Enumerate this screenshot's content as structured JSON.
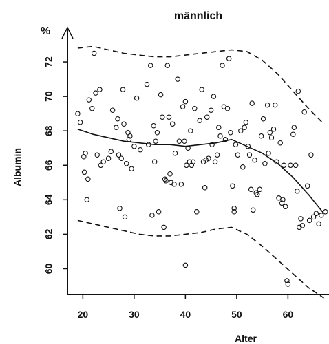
{
  "chart_data": {
    "type": "scatter",
    "title": "männlich",
    "xlabel": "Alter",
    "ylabel": "Albumin",
    "yunit": "%",
    "xlim": [
      17,
      68
    ],
    "ylim": [
      58.5,
      74
    ],
    "xticks": [
      20,
      30,
      40,
      50,
      60
    ],
    "yticks": [
      60,
      62,
      64,
      66,
      68,
      70,
      72
    ],
    "points": [
      [
        19,
        69
      ],
      [
        19.5,
        68.5
      ],
      [
        20.2,
        66.5
      ],
      [
        20.3,
        65.6
      ],
      [
        20.5,
        66.7
      ],
      [
        20.8,
        64
      ],
      [
        21,
        65.2
      ],
      [
        21.2,
        69.8
      ],
      [
        21.8,
        69.3
      ],
      [
        22.2,
        72.5
      ],
      [
        22.5,
        70.2
      ],
      [
        22.8,
        66.6
      ],
      [
        23.3,
        70.4
      ],
      [
        23.5,
        66
      ],
      [
        24,
        66.2
      ],
      [
        25,
        66.4
      ],
      [
        25.5,
        66.8
      ],
      [
        25.8,
        69.2
      ],
      [
        26.5,
        68.2
      ],
      [
        26.8,
        68.7
      ],
      [
        27,
        66.6
      ],
      [
        27.2,
        63.5
      ],
      [
        27.5,
        66.4
      ],
      [
        27.8,
        70.4
      ],
      [
        28,
        68.4
      ],
      [
        28.2,
        63
      ],
      [
        28.5,
        66.1
      ],
      [
        28.8,
        67.9
      ],
      [
        29,
        67.5
      ],
      [
        29.2,
        67.7
      ],
      [
        29.5,
        65.8
      ],
      [
        30,
        67.1
      ],
      [
        30.5,
        69.9
      ],
      [
        31.2,
        66.9
      ],
      [
        32.5,
        70.7
      ],
      [
        32.8,
        67.2
      ],
      [
        33.2,
        71.8
      ],
      [
        33.5,
        63.1
      ],
      [
        33.8,
        68.3
      ],
      [
        34,
        66.2
      ],
      [
        34.2,
        67.4
      ],
      [
        34.5,
        67.9
      ],
      [
        34.8,
        63.3
      ],
      [
        35.2,
        70.1
      ],
      [
        35.5,
        68.8
      ],
      [
        35.8,
        62.4
      ],
      [
        36,
        65.2
      ],
      [
        36.2,
        65.1
      ],
      [
        36.5,
        71.8
      ],
      [
        36.8,
        68.8
      ],
      [
        37,
        65.5
      ],
      [
        37.2,
        65
      ],
      [
        37.5,
        68.4
      ],
      [
        37.8,
        64.9
      ],
      [
        38,
        66.7
      ],
      [
        38.5,
        71
      ],
      [
        38.8,
        67.4
      ],
      [
        39.2,
        64.9
      ],
      [
        39.5,
        69.4
      ],
      [
        39.8,
        67.4
      ],
      [
        40,
        69.7
      ],
      [
        40,
        60.2
      ],
      [
        40.2,
        66
      ],
      [
        40.5,
        67
      ],
      [
        40.8,
        66.2
      ],
      [
        41,
        68
      ],
      [
        41.2,
        66
      ],
      [
        41.5,
        66.2
      ],
      [
        41.8,
        69.3
      ],
      [
        42.2,
        63.3
      ],
      [
        42.8,
        68.6
      ],
      [
        43.2,
        70.4
      ],
      [
        43.5,
        66.2
      ],
      [
        43.8,
        64.7
      ],
      [
        44,
        66.3
      ],
      [
        44.2,
        68.8
      ],
      [
        44.5,
        66.4
      ],
      [
        45,
        69.2
      ],
      [
        45.2,
        67.2
      ],
      [
        45.5,
        70
      ],
      [
        45.8,
        66.2
      ],
      [
        46.2,
        66.6
      ],
      [
        46.5,
        68.2
      ],
      [
        46.8,
        67.7
      ],
      [
        47.2,
        71.8
      ],
      [
        47.5,
        69.4
      ],
      [
        47.8,
        67.5
      ],
      [
        48.2,
        69.3
      ],
      [
        48.5,
        72.2
      ],
      [
        48.8,
        67.9
      ],
      [
        49.2,
        64.8
      ],
      [
        49.5,
        63.3
      ],
      [
        49.5,
        63.5
      ],
      [
        49.8,
        67.2
      ],
      [
        50.2,
        66.6
      ],
      [
        50.8,
        68
      ],
      [
        51.2,
        65.9
      ],
      [
        51.5,
        68.2
      ],
      [
        51.8,
        68.5
      ],
      [
        52.2,
        67.1
      ],
      [
        52.5,
        66.6
      ],
      [
        52.8,
        64.6
      ],
      [
        53,
        69.6
      ],
      [
        53.2,
        63.4
      ],
      [
        53.5,
        66.3
      ],
      [
        53.8,
        64.4
      ],
      [
        54,
        64.3
      ],
      [
        54.5,
        64.6
      ],
      [
        54.8,
        67.7
      ],
      [
        55.2,
        68.7
      ],
      [
        55.5,
        66.1
      ],
      [
        56,
        69.5
      ],
      [
        56.2,
        66.7
      ],
      [
        56.5,
        67.9
      ],
      [
        56.8,
        67.6
      ],
      [
        57.2,
        68.1
      ],
      [
        57.5,
        69.5
      ],
      [
        57.8,
        66.2
      ],
      [
        58.2,
        64.1
      ],
      [
        58.5,
        67.3
      ],
      [
        58.8,
        63.8
      ],
      [
        59,
        64
      ],
      [
        59.2,
        66
      ],
      [
        59.5,
        63.6
      ],
      [
        59.8,
        59.3
      ],
      [
        60,
        59.1
      ],
      [
        60.5,
        66
      ],
      [
        61,
        67.8
      ],
      [
        61.2,
        68.2
      ],
      [
        61.5,
        66
      ],
      [
        61.8,
        64.5
      ],
      [
        62,
        70.3
      ],
      [
        62.2,
        62.4
      ],
      [
        62.5,
        62.9
      ],
      [
        62.8,
        62.5
      ],
      [
        63.2,
        69.1
      ],
      [
        63.8,
        64.8
      ],
      [
        64.2,
        62.8
      ],
      [
        64.5,
        66.6
      ],
      [
        65,
        63
      ],
      [
        65.5,
        63.2
      ],
      [
        66,
        62.6
      ],
      [
        66.5,
        63.1
      ],
      [
        67.3,
        63.3
      ]
    ],
    "series": [
      {
        "style": "solid",
        "x": [
          19,
          22,
          25,
          28,
          31,
          34,
          37,
          40,
          43,
          46,
          49,
          52,
          55,
          58,
          61,
          64,
          67
        ],
        "y": [
          68.1,
          67.8,
          67.6,
          67.4,
          67.3,
          67.2,
          67.2,
          67.1,
          67.2,
          67.3,
          67.5,
          67.1,
          66.7,
          66.1,
          65.3,
          64.3,
          63.2
        ]
      },
      {
        "style": "dashed",
        "x": [
          19,
          22,
          25,
          28,
          31,
          34,
          37,
          40,
          43,
          46,
          49,
          52,
          55,
          58,
          61,
          64,
          67
        ],
        "y": [
          72.8,
          72.9,
          72.7,
          72.5,
          72.4,
          72.3,
          72.3,
          72.4,
          72.5,
          72.6,
          72.7,
          72.6,
          72.1,
          71.3,
          70.3,
          69.3,
          68.4
        ]
      },
      {
        "style": "dashed",
        "x": [
          19,
          22,
          25,
          28,
          31,
          34,
          37,
          40,
          43,
          46,
          49,
          52,
          55,
          58,
          61,
          64,
          67
        ],
        "y": [
          62.8,
          62.6,
          62.4,
          62.2,
          62.0,
          61.9,
          61.9,
          62.0,
          62.1,
          62.3,
          62.4,
          62.0,
          61.3,
          60.5,
          59.7,
          58.9,
          58.3
        ]
      }
    ]
  }
}
